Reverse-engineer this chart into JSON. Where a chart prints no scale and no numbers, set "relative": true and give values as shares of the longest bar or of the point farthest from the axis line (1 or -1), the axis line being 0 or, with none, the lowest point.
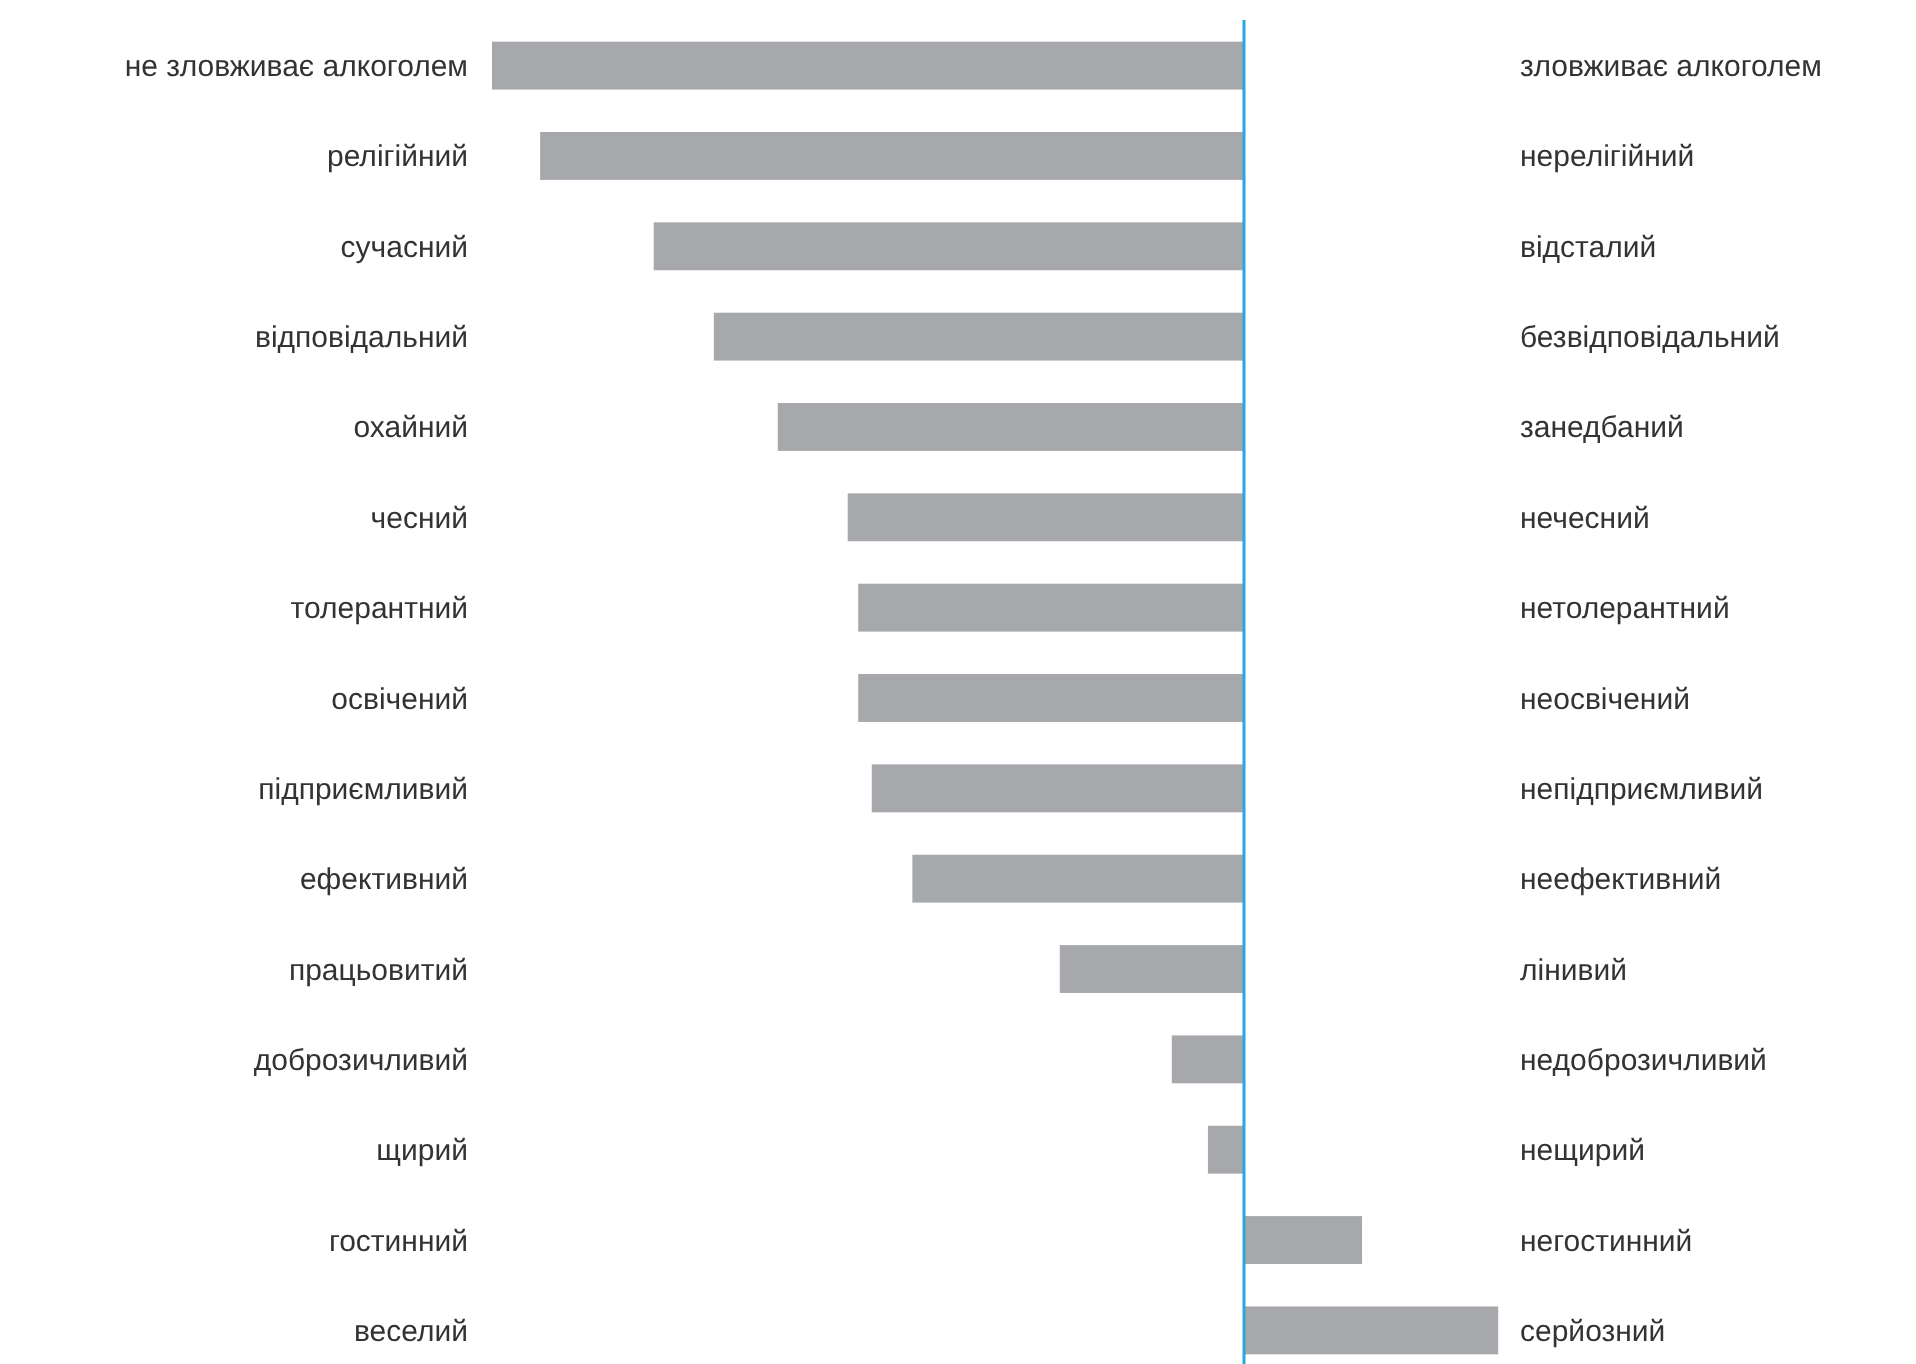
{
  "chart_data": {
    "type": "bar",
    "orientation": "horizontal",
    "relative": true,
    "categories": [
      "не зловживає алкоголем",
      "релігійний",
      "сучасний",
      "відповідальний",
      "охайний",
      "чесний",
      "толерантний",
      "освічений",
      "підприємливий",
      "ефективний",
      "працьовитий",
      "доброзичливий",
      "щирий",
      "гостинний",
      "веселий"
    ],
    "y2_categories": [
      "зловживає алкоголем",
      "нерелігійний",
      "відсталий",
      "безвідповідальний",
      "занедбаний",
      "нечесний",
      "нетолерантний",
      "неосвічений",
      "непідприємливий",
      "неефективний",
      "лінивий",
      "недоброзичливий",
      "нещирий",
      "негостинний",
      "серйозний"
    ],
    "values": [
      -1,
      -0.936,
      -0.785,
      -0.705,
      -0.62,
      -0.527,
      -0.513,
      -0.513,
      -0.495,
      -0.441,
      -0.245,
      -0.096,
      -0.048,
      0.157,
      0.338
    ],
    "color": "#a7a8ab",
    "ref_lines": [
      {
        "axis": "x",
        "value": 0,
        "color": "#29a8e0"
      }
    ]
  }
}
